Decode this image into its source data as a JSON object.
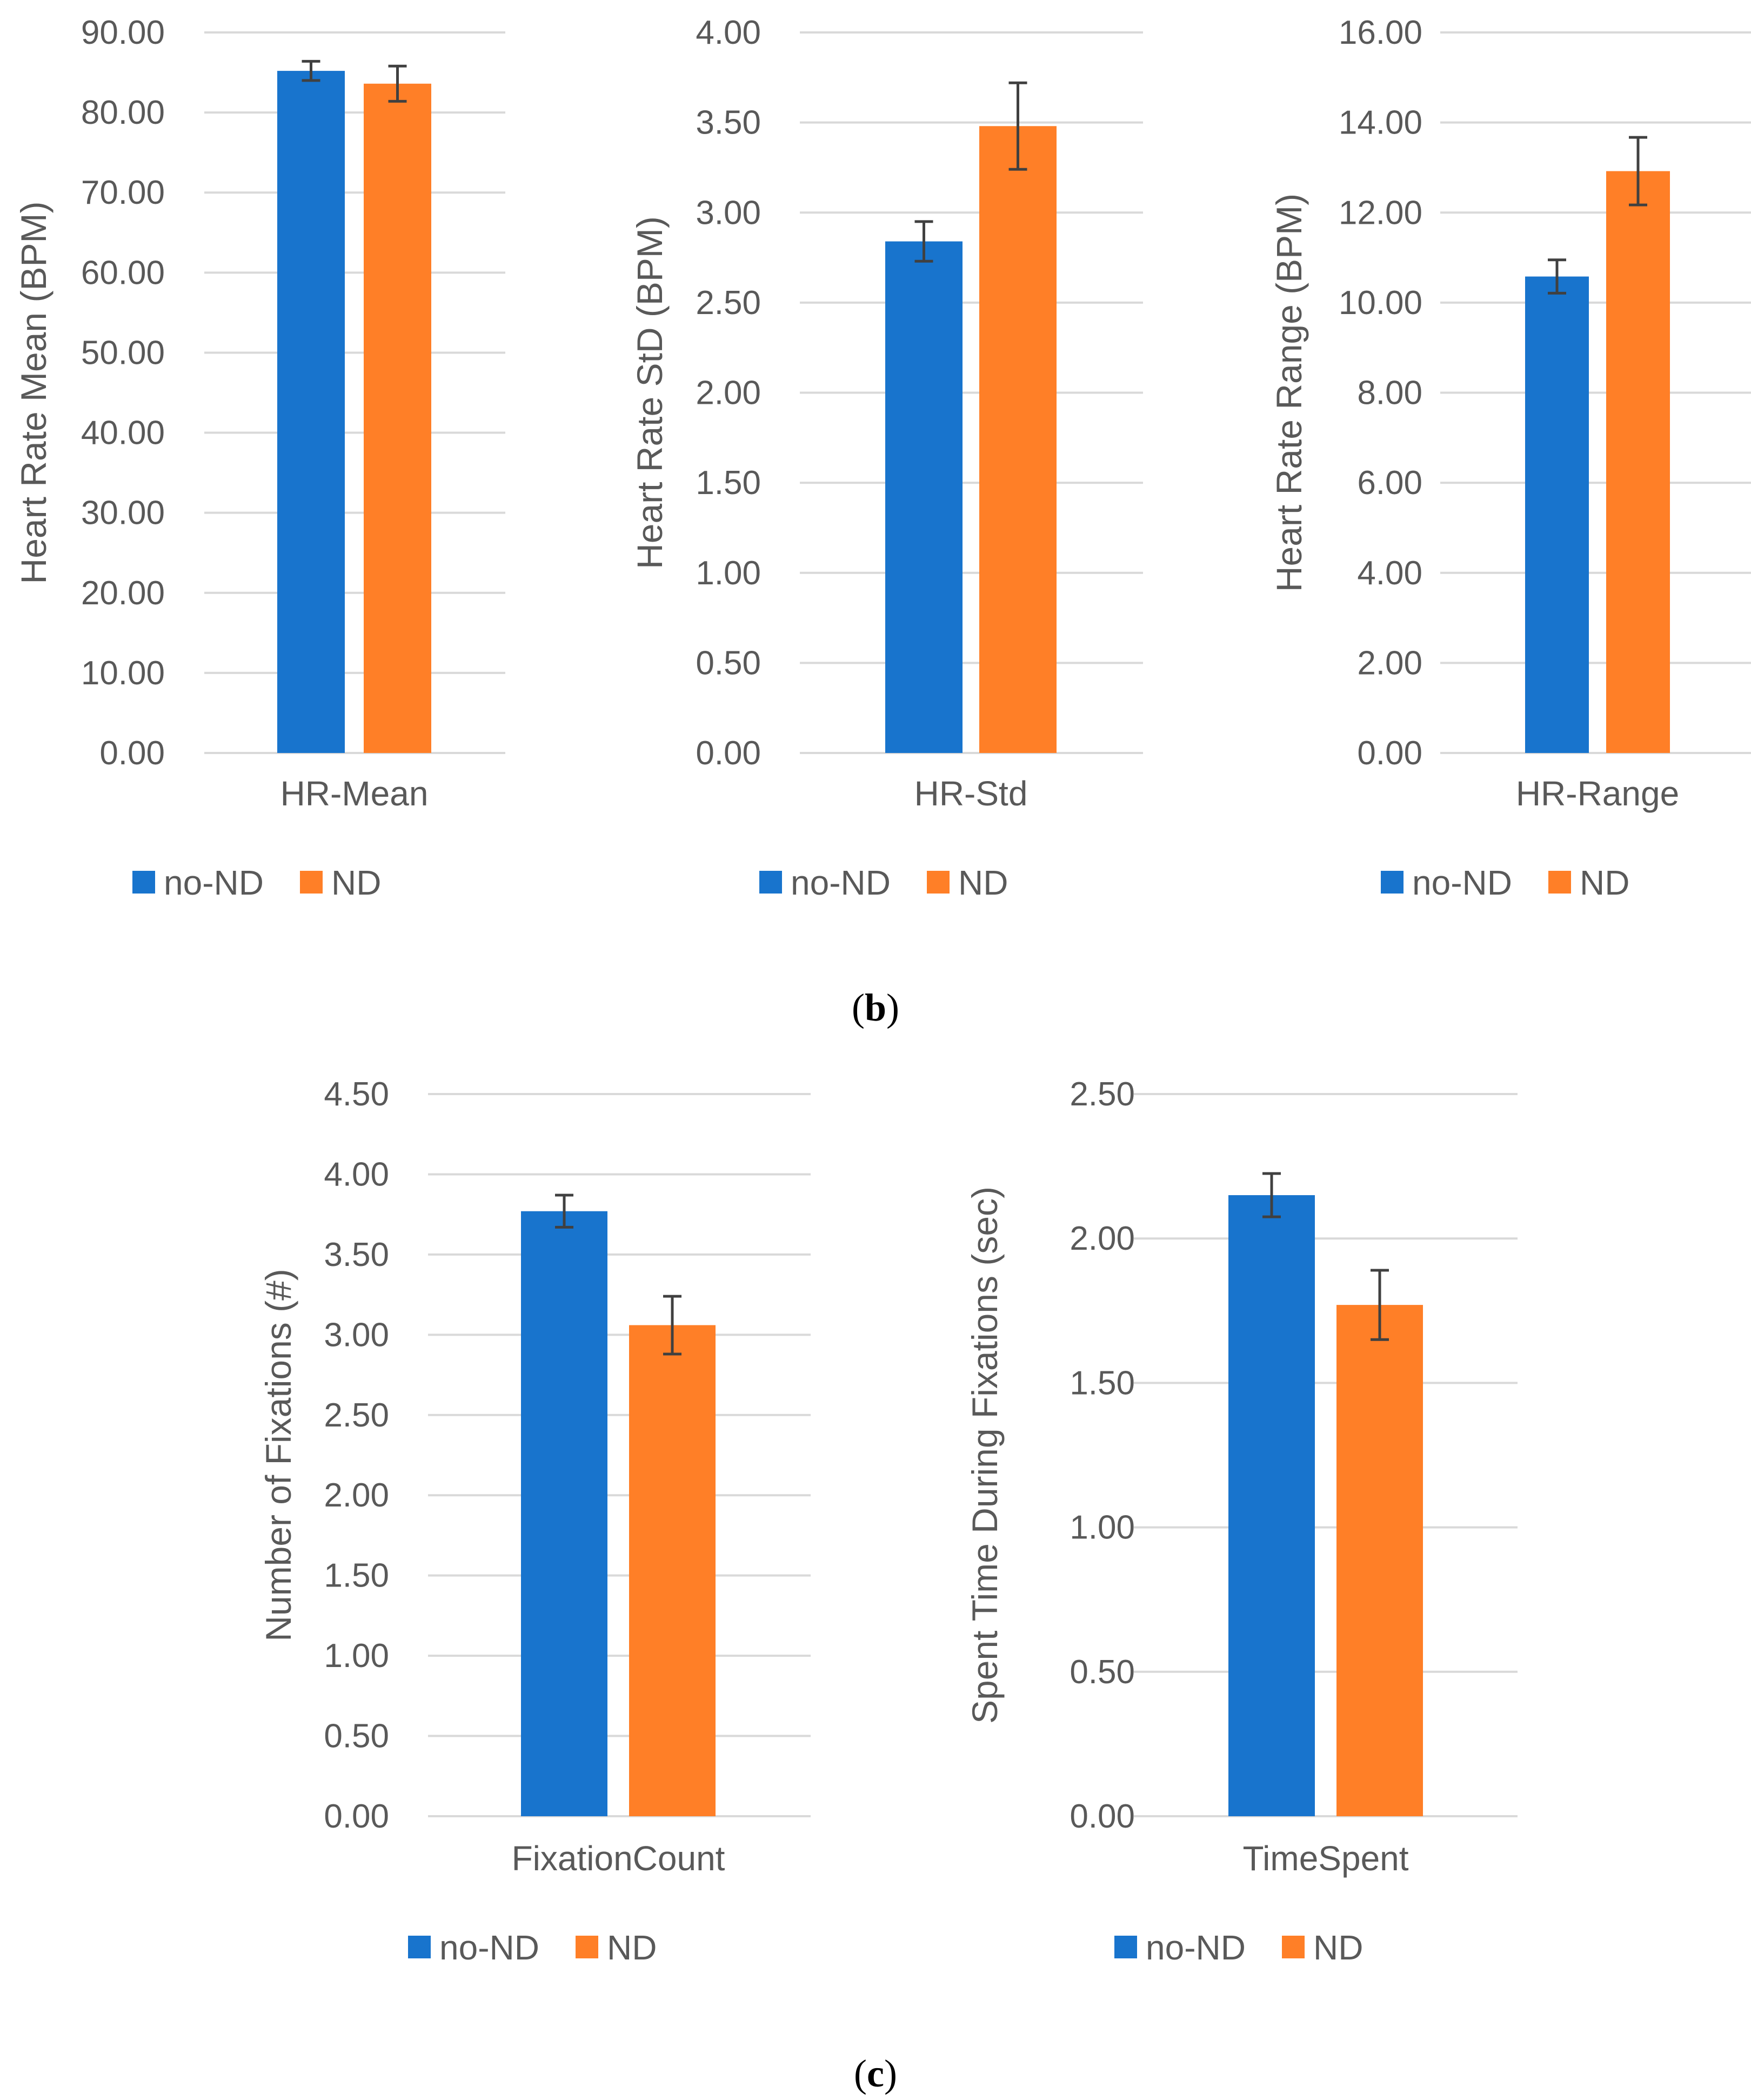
{
  "chart_data": [
    {
      "type": "bar",
      "categories": [
        "HR-Mean"
      ],
      "series": [
        {
          "name": "no-ND",
          "values": [
            85.2
          ],
          "error": [
            1.2
          ]
        },
        {
          "name": "ND",
          "values": [
            83.6
          ],
          "error": [
            2.2
          ]
        }
      ],
      "ylabel": "Heart Rate Mean (BPM)",
      "ylim": [
        0,
        90
      ],
      "yticks": [
        "0.00",
        "10.00",
        "20.00",
        "30.00",
        "40.00",
        "50.00",
        "60.00",
        "70.00",
        "80.00",
        "90.00"
      ],
      "grid": true,
      "legend": "bottom"
    },
    {
      "type": "bar",
      "categories": [
        "HR-Std"
      ],
      "series": [
        {
          "name": "no-ND",
          "values": [
            2.84
          ],
          "error": [
            0.11
          ]
        },
        {
          "name": "ND",
          "values": [
            3.48
          ],
          "error": [
            0.24
          ]
        }
      ],
      "ylabel": "Heart Rate StD (BPM)",
      "ylim": [
        0,
        4
      ],
      "yticks": [
        "0.00",
        "0.50",
        "1.00",
        "1.50",
        "2.00",
        "2.50",
        "3.00",
        "3.50",
        "4.00"
      ],
      "grid": true,
      "legend": "bottom"
    },
    {
      "type": "bar",
      "categories": [
        "HR-Range"
      ],
      "series": [
        {
          "name": "no-ND",
          "values": [
            10.58
          ],
          "error": [
            0.37
          ]
        },
        {
          "name": "ND",
          "values": [
            12.92
          ],
          "error": [
            0.75
          ]
        }
      ],
      "ylabel": "Heart Rate Range (BPM)",
      "ylim": [
        0,
        16
      ],
      "yticks": [
        "0.00",
        "2.00",
        "4.00",
        "6.00",
        "8.00",
        "10.00",
        "12.00",
        "14.00",
        "16.00"
      ],
      "grid": true,
      "legend": "bottom"
    },
    {
      "type": "bar",
      "categories": [
        "FixationCount"
      ],
      "series": [
        {
          "name": "no-ND",
          "values": [
            3.77
          ],
          "error": [
            0.1
          ]
        },
        {
          "name": "ND",
          "values": [
            3.06
          ],
          "error": [
            0.18
          ]
        }
      ],
      "ylabel": "Number of Fixations (#)",
      "ylim": [
        0,
        4.5
      ],
      "yticks": [
        "0.00",
        "0.50",
        "1.00",
        "1.50",
        "2.00",
        "2.50",
        "3.00",
        "3.50",
        "4.00",
        "4.50"
      ],
      "grid": true,
      "legend": "bottom"
    },
    {
      "type": "bar",
      "categories": [
        "TimeSpent"
      ],
      "series": [
        {
          "name": "no-ND",
          "values": [
            2.15
          ],
          "error": [
            0.075
          ]
        },
        {
          "name": "ND",
          "values": [
            1.77
          ],
          "error": [
            0.12
          ]
        }
      ],
      "ylabel": "Spent Time During Fixations (sec)",
      "ylim": [
        0,
        2.5
      ],
      "yticks": [
        "0.00",
        "0.50",
        "1.00",
        "1.50",
        "2.00",
        "2.50"
      ],
      "grid": true,
      "legend": "bottom"
    }
  ],
  "colors": {
    "no-ND": "#1874CD",
    "ND": "#FF7F27",
    "grid": "#D9D9D9",
    "text": "#595959",
    "error": "#404040"
  },
  "captions": {
    "b": "b",
    "c": "c"
  }
}
